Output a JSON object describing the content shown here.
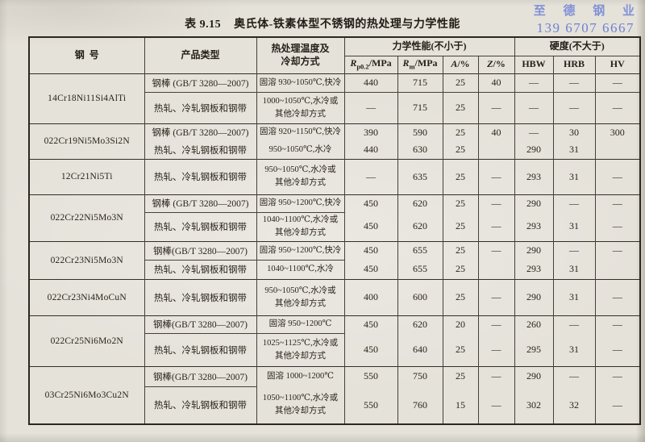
{
  "page": {
    "title_no": "表 9.15",
    "title_text": "奥氏体-铁素体型不锈钢的热处理与力学性能",
    "watermark": {
      "company": "至 德 钢 业",
      "phone": "139 6707 6667",
      "color": "#6c80d6"
    }
  },
  "table": {
    "header": {
      "grade": "钢  号",
      "product": "产品类型",
      "heat": "热处理温度及\n冷却方式",
      "perf_group": "力学性能(不小于)",
      "hard_group": "硬度(不大于)",
      "perf_cols": [
        {
          "i": "R",
          "sub": "p0.2",
          "rest": "/MPa"
        },
        {
          "i": "R",
          "sub": "m",
          "rest": "/MPa"
        },
        {
          "i": "A",
          "sub": "",
          "rest": "/%"
        },
        {
          "i": "Z",
          "sub": "",
          "rest": "/%"
        }
      ],
      "hard_cols": [
        "HBW",
        "HRB",
        "HV"
      ]
    },
    "rows": [
      {
        "grade": "14Cr18Ni11Si4AlTi",
        "divider": "all",
        "subs": [
          {
            "product": "钢棒 (GB/T 3280—2007)",
            "temp": "固溶 930~1050℃,快冷",
            "values": [
              "440",
              "715",
              "25",
              "40",
              "—",
              "—",
              "—"
            ]
          },
          {
            "product": "热轧、冷轧钢板和钢带",
            "temp": "1000~1050℃,水冷或\n其他冷却方式",
            "values": [
              "—",
              "715",
              "25",
              "—",
              "—",
              "—",
              "—"
            ]
          }
        ]
      },
      {
        "grade": "022Cr19Ni5Mo3Si2N",
        "divider": "none",
        "subs": [
          {
            "product": "钢棒 (GB/T 3280—2007)",
            "temp": "固溶 920~1150℃,快冷",
            "values": [
              "390",
              "590",
              "25",
              "40",
              "—",
              "30",
              "300"
            ]
          },
          {
            "product": "热轧、冷轧钢板和钢带",
            "temp": "950~1050℃,水冷",
            "values": [
              "440",
              "630",
              "25",
              "",
              "290",
              "31",
              ""
            ]
          }
        ]
      },
      {
        "grade": "12Cr21Ni5Ti",
        "divider": "none",
        "subs": [
          {
            "product": "热轧、冷轧钢板和钢带",
            "temp": "950~1050℃,水冷或\n其他冷却方式",
            "values": [
              "—",
              "635",
              "25",
              "—",
              "293",
              "31",
              "—"
            ]
          }
        ]
      },
      {
        "grade": "022Cr22Ni5Mo3N",
        "divider": "pt",
        "subs": [
          {
            "product": "钢棒 (GB/T 3280—2007)",
            "temp": "固溶 950~1200℃,快冷",
            "values": [
              "450",
              "620",
              "25",
              "—",
              "290",
              "—",
              "—"
            ]
          },
          {
            "product": "热轧、冷轧钢板和钢带",
            "temp": "1040~1100℃,水冷或\n其他冷却方式",
            "values": [
              "450",
              "620",
              "25",
              "—",
              "293",
              "31",
              "—"
            ]
          }
        ]
      },
      {
        "grade": "022Cr23Ni5Mo3N",
        "divider": "pt",
        "subs": [
          {
            "product": "钢棒(GB/T 3280—2007)",
            "temp": "固溶 950~1200℃,快冷",
            "values": [
              "450",
              "655",
              "25",
              "—",
              "290",
              "—",
              "—"
            ]
          },
          {
            "product": "热轧、冷轧钢板和钢带",
            "temp": "1040~1100℃,水冷",
            "values": [
              "450",
              "655",
              "25",
              "",
              "293",
              "31",
              ""
            ]
          }
        ]
      },
      {
        "grade": "022Cr23Ni4MoCuN",
        "divider": "none",
        "subs": [
          {
            "product": "热轧、冷轧钢板和钢带",
            "temp": "950~1050℃,水冷或\n其他冷却方式",
            "values": [
              "400",
              "600",
              "25",
              "—",
              "290",
              "31",
              "—"
            ]
          }
        ]
      },
      {
        "grade": "022Cr25Ni6Mo2N",
        "divider": "pt",
        "subs": [
          {
            "product": "钢棒(GB/T 3280—2007)",
            "temp": "固溶 950~1200℃",
            "values": [
              "450",
              "620",
              "20",
              "—",
              "260",
              "—",
              "—"
            ]
          },
          {
            "product": "热轧、冷轧钢板和钢带",
            "temp": "1025~1125℃,水冷或\n其他冷却方式",
            "values": [
              "450",
              "640",
              "25",
              "—",
              "295",
              "31",
              "—"
            ]
          }
        ]
      },
      {
        "grade": "03Cr25Ni6Mo3Cu2N",
        "divider": "p",
        "subs": [
          {
            "product": "钢棒(GB/T 3280—2007)",
            "temp": "固溶 1000~1200℃",
            "values": [
              "550",
              "750",
              "25",
              "—",
              "290",
              "—",
              "—"
            ]
          },
          {
            "product": "热轧、冷轧钢板和钢带",
            "temp": "1050~1100℃,水冷或\n其他冷却方式",
            "values": [
              "550",
              "760",
              "15",
              "—",
              "302",
              "32",
              "—"
            ]
          }
        ]
      }
    ]
  }
}
